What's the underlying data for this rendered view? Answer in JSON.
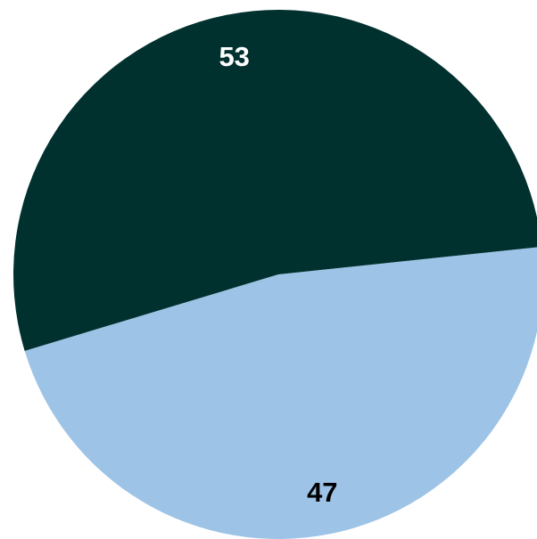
{
  "chart_data": {
    "type": "pie",
    "slices": [
      {
        "label": "",
        "value": 47,
        "data_label": "47",
        "color": "#9DC3E6",
        "label_color": "#000000"
      },
      {
        "label": "",
        "value": 53,
        "data_label": "53",
        "color": "#01312F",
        "label_color": "#FFFFFF"
      }
    ],
    "start_angle_deg": 84
  }
}
